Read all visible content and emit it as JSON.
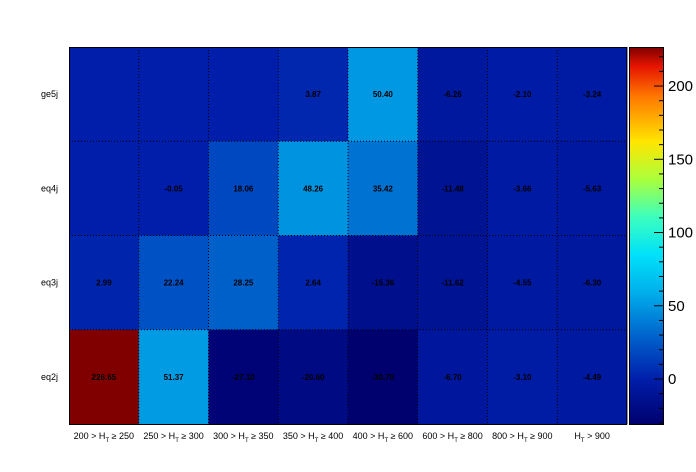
{
  "chart_data": {
    "type": "heatmap",
    "title": "",
    "xlabel": "",
    "ylabel": "",
    "x_categories": [
      {
        "pre": "200 > H",
        "sub": "T",
        "post": " ≥ 250"
      },
      {
        "pre": "250 > H",
        "sub": "T",
        "post": " ≥ 300"
      },
      {
        "pre": "300 > H",
        "sub": "T",
        "post": " ≥ 350"
      },
      {
        "pre": "350 > H",
        "sub": "T",
        "post": " ≥ 400"
      },
      {
        "pre": "400 > H",
        "sub": "T",
        "post": " ≥ 600"
      },
      {
        "pre": "600 > H",
        "sub": "T",
        "post": " ≥ 800"
      },
      {
        "pre": "800 > H",
        "sub": "T",
        "post": " ≥ 900"
      },
      {
        "pre": "H",
        "sub": "T",
        "post": " > 900"
      }
    ],
    "y_categories": [
      "ge5j",
      "eq4j",
      "eq3j",
      "eq2j"
    ],
    "values": [
      [
        null,
        null,
        null,
        3.87,
        50.4,
        -6.26,
        -2.1,
        -3.24
      ],
      [
        null,
        -0.05,
        18.06,
        48.26,
        35.42,
        -11.48,
        -3.66,
        -5.63
      ],
      [
        2.99,
        22.24,
        28.25,
        2.64,
        -15.36,
        -11.62,
        -4.55,
        -6.3
      ],
      [
        226.65,
        51.37,
        -27.1,
        -20.6,
        -30.7,
        -6.7,
        -3.1,
        -4.49
      ]
    ],
    "cell_labels": [
      [
        "",
        "",
        "",
        "3.87",
        "50.40",
        "-6.26",
        "-2.10",
        "-3.24"
      ],
      [
        "",
        "-0.05",
        "18.06",
        "48.26",
        "35.42",
        "-11.48",
        "-3.66",
        "-5.63"
      ],
      [
        "2.99",
        "22.24",
        "28.25",
        "2.64",
        "-15.36",
        "-11.62",
        "-4.55",
        "-6.30"
      ],
      [
        "226.65",
        "51.37",
        "-27.10",
        "-20.60",
        "-30.70",
        "-6.70",
        "-3.10",
        "-4.49"
      ]
    ],
    "zlim": [
      -30.7,
      226.65
    ],
    "z_ticks": [
      0,
      50,
      100,
      150,
      200
    ],
    "colormap": "rainbow-jet",
    "grid": true,
    "colorbar": "right"
  }
}
